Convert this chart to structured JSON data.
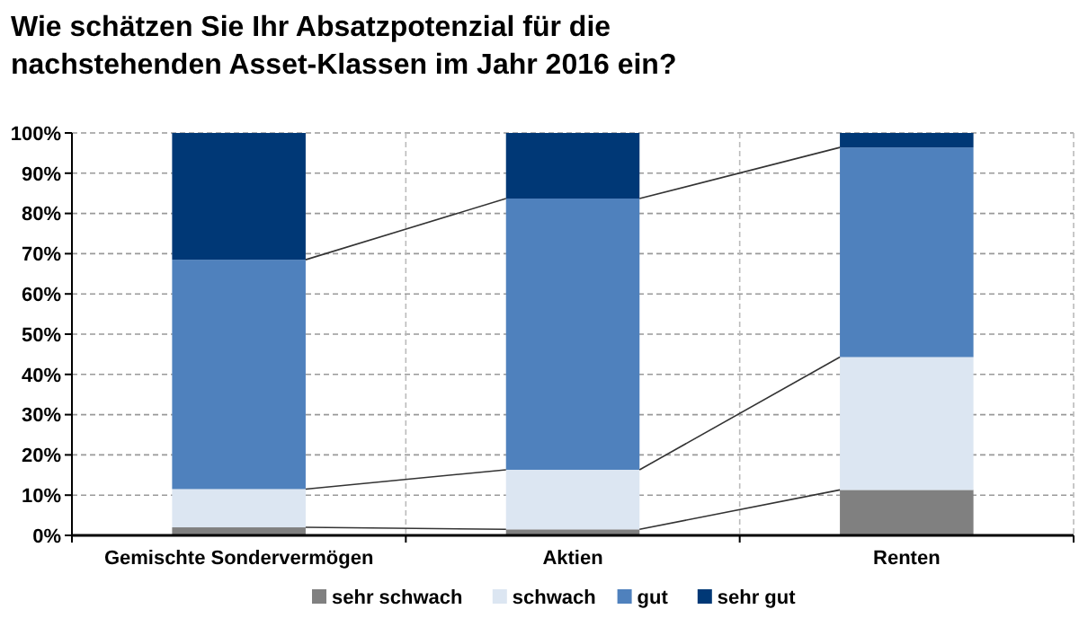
{
  "chart_data": {
    "type": "bar",
    "title": "Wie schätzen Sie Ihr Absatzpotenzial für die nachstehenden Asset-Klassen im Jahr 2016 ein?",
    "categories": [
      "Gemischte Sondervermögen",
      "Aktien",
      "Renten"
    ],
    "stacked": true,
    "series": [
      {
        "name": "sehr schwach",
        "color": "#808080",
        "values": [
          2,
          1.5,
          11.3
        ]
      },
      {
        "name": "schwach",
        "color": "#dce6f2",
        "values": [
          9.5,
          14.8,
          33
        ]
      },
      {
        "name": "gut",
        "color": "#4f81bd",
        "values": [
          57,
          67.4,
          52.1
        ]
      },
      {
        "name": "sehr gut",
        "color": "#003876",
        "values": [
          31.5,
          16.3,
          3.6
        ]
      }
    ],
    "ylim": [
      0,
      100
    ],
    "yticks": [
      {
        "value": 0,
        "label": "0%"
      },
      {
        "value": 10,
        "label": "10%"
      },
      {
        "value": 20,
        "label": "20%"
      },
      {
        "value": 30,
        "label": "30%"
      },
      {
        "value": 40,
        "label": "40%"
      },
      {
        "value": 50,
        "label": "50%"
      },
      {
        "value": 60,
        "label": "60%"
      },
      {
        "value": 70,
        "label": "70%"
      },
      {
        "value": 80,
        "label": "80%"
      },
      {
        "value": 90,
        "label": "90%"
      },
      {
        "value": 100,
        "label": "100%"
      }
    ],
    "grid": true,
    "legend": "bottom"
  }
}
